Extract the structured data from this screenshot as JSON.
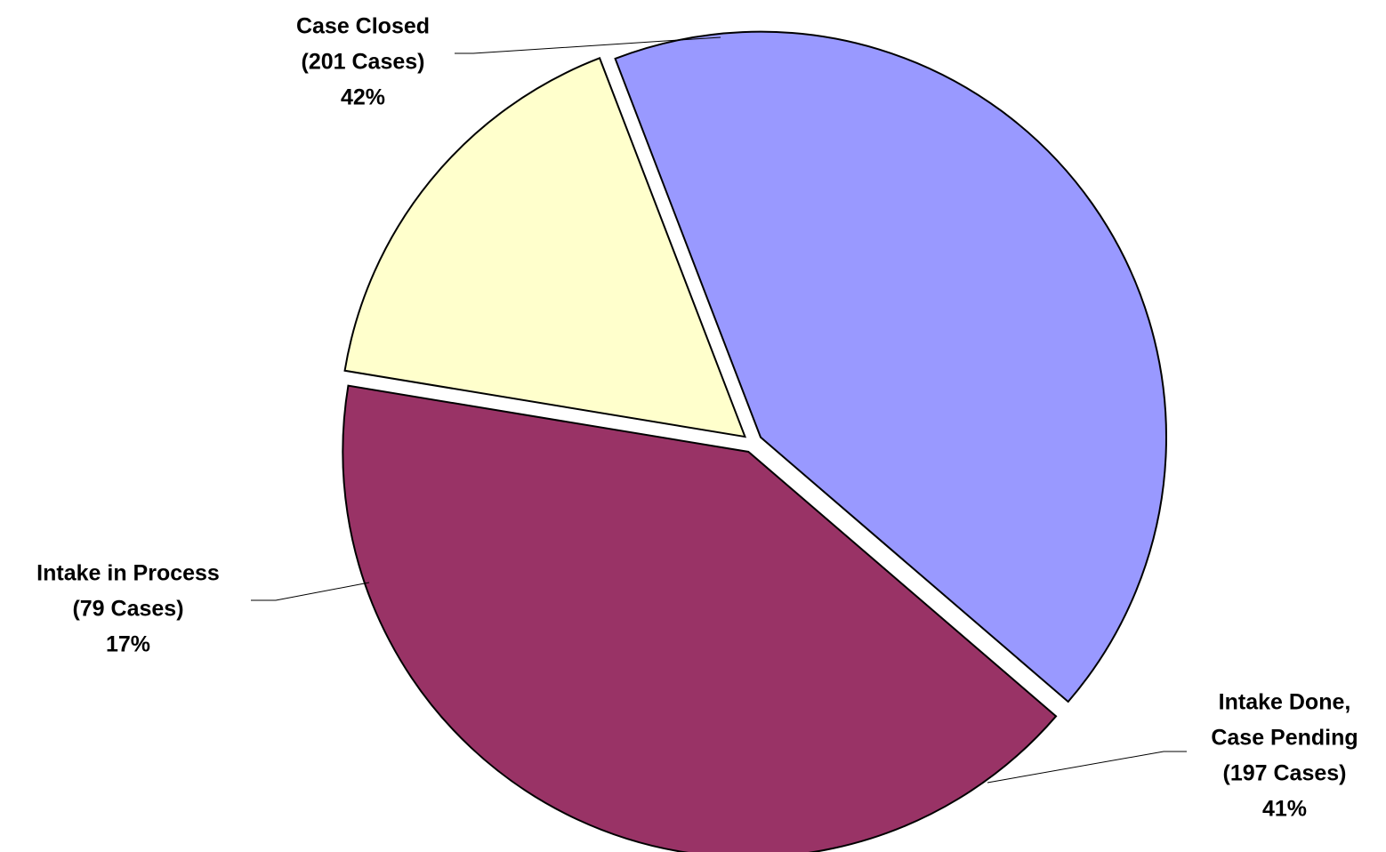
{
  "chart_data": {
    "type": "pie",
    "title": "",
    "slices": [
      {
        "label_lines": [
          "Case Closed",
          "(201 Cases)"
        ],
        "value": 201,
        "percent_label": "42%",
        "color": "#9999FF"
      },
      {
        "label_lines": [
          "Intake Done,",
          "Case Pending",
          "(197 Cases)"
        ],
        "value": 197,
        "percent_label": "41%",
        "color": "#993366"
      },
      {
        "label_lines": [
          "Intake in Process",
          "(79 Cases)"
        ],
        "value": 79,
        "percent_label": "17%",
        "color": "#FFFFCC"
      }
    ],
    "exploded": true,
    "legend": "none",
    "stroke_color": "#000000"
  }
}
